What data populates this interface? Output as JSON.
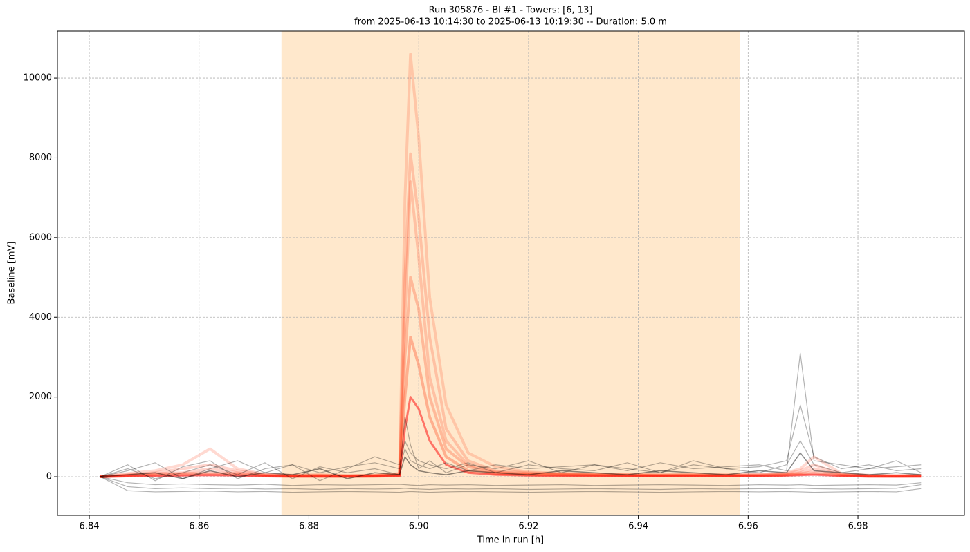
{
  "chart_data": {
    "type": "line",
    "title": "Run 305876  -  BI #1  -  Towers: [6, 13]",
    "subtitle": "from  2025-06-13 10:14:30  to  2025-06-13 10:19:30 -- Duration: 5.0 m",
    "x_label": "Time in run [h]",
    "y_label": "Baseline [mV]",
    "xlim": [
      6.8342,
      6.9994
    ],
    "ylim": [
      -970,
      11180
    ],
    "xticks": [
      6.84,
      6.86,
      6.88,
      {
        "value": 6.9,
        "label": "6.90"
      },
      6.92,
      6.94,
      6.96,
      6.98
    ],
    "yticks": [
      0,
      2000,
      4000,
      6000,
      8000,
      10000
    ],
    "grid": true,
    "shaded_span": [
      6.875,
      6.9585
    ],
    "shaded_color": "#ffe8cc",
    "x": [
      6.842,
      6.847,
      6.852,
      6.857,
      6.862,
      6.867,
      6.872,
      6.877,
      6.882,
      6.887,
      6.892,
      6.8965,
      6.8975,
      6.8985,
      6.9,
      6.902,
      6.905,
      6.909,
      6.914,
      6.92,
      6.926,
      6.932,
      6.938,
      6.944,
      6.95,
      6.956,
      6.962,
      6.967,
      6.9695,
      6.972,
      6.977,
      6.982,
      6.987,
      6.9915
    ],
    "series": [
      {
        "color": "#ff2a00",
        "opacity": 0.18,
        "width": 4,
        "values": [
          0,
          80,
          150,
          300,
          700,
          200,
          60,
          40,
          50,
          30,
          40,
          80,
          7000,
          10600,
          8500,
          4500,
          1800,
          600,
          250,
          120,
          90,
          70,
          60,
          50,
          60,
          50,
          60,
          100,
          200,
          500,
          80,
          40,
          30,
          40
        ]
      },
      {
        "color": "#ff2a00",
        "opacity": 0.2,
        "width": 4,
        "values": [
          0,
          50,
          100,
          200,
          300,
          150,
          50,
          30,
          40,
          20,
          30,
          60,
          5000,
          8100,
          6500,
          3500,
          1200,
          400,
          150,
          100,
          70,
          60,
          50,
          40,
          50,
          40,
          50,
          80,
          150,
          300,
          60,
          30,
          20,
          30
        ]
      },
      {
        "color": "#ff2a00",
        "opacity": 0.2,
        "width": 4,
        "values": [
          0,
          40,
          80,
          100,
          200,
          100,
          40,
          20,
          30,
          20,
          30,
          50,
          4000,
          7400,
          5500,
          2500,
          900,
          300,
          120,
          80,
          60,
          50,
          40,
          30,
          40,
          30,
          40,
          60,
          100,
          200,
          50,
          20,
          20,
          20
        ]
      },
      {
        "color": "#ff2a00",
        "opacity": 0.25,
        "width": 4,
        "values": [
          0,
          30,
          60,
          80,
          100,
          80,
          30,
          20,
          20,
          10,
          20,
          40,
          3000,
          5000,
          4200,
          2000,
          700,
          250,
          100,
          60,
          50,
          40,
          30,
          30,
          30,
          30,
          30,
          50,
          80,
          120,
          40,
          20,
          10,
          20
        ]
      },
      {
        "color": "#ff2a00",
        "opacity": 0.3,
        "width": 4,
        "values": [
          0,
          20,
          40,
          50,
          60,
          50,
          20,
          10,
          10,
          10,
          10,
          30,
          2000,
          3500,
          2800,
          1500,
          500,
          150,
          80,
          50,
          40,
          30,
          20,
          20,
          20,
          20,
          20,
          40,
          60,
          80,
          30,
          10,
          10,
          10
        ]
      },
      {
        "color": "#ff0000",
        "opacity": 0.5,
        "width": 3,
        "values": [
          0,
          10,
          20,
          30,
          40,
          30,
          10,
          5,
          5,
          5,
          10,
          20,
          1200,
          2000,
          1700,
          900,
          300,
          100,
          50,
          30,
          20,
          20,
          10,
          10,
          10,
          10,
          10,
          30,
          40,
          50,
          20,
          5,
          5,
          5
        ]
      },
      {
        "color": "#000000",
        "opacity": 0.3,
        "width": 1.2,
        "values": [
          0,
          300,
          -100,
          250,
          400,
          -50,
          200,
          300,
          100,
          250,
          350,
          200,
          700,
          400,
          300,
          200,
          350,
          150,
          300,
          200,
          250,
          300,
          150,
          350,
          200,
          250,
          300,
          150,
          3100,
          400,
          300,
          200,
          250,
          300
        ]
      },
      {
        "color": "#000000",
        "opacity": 0.3,
        "width": 1.2,
        "values": [
          0,
          -250,
          -300,
          -280,
          -300,
          -290,
          -310,
          -300,
          -320,
          -300,
          -310,
          -300,
          -290,
          -300,
          -310,
          -320,
          -300,
          -310,
          -300,
          -320,
          -310,
          -300,
          -310,
          -320,
          -300,
          -310,
          -300,
          -300,
          -290,
          -300,
          -310,
          -300,
          -290,
          -200
        ]
      },
      {
        "color": "#000000",
        "opacity": 0.3,
        "width": 1.2,
        "values": [
          0,
          150,
          350,
          -50,
          200,
          400,
          100,
          300,
          -100,
          200,
          500,
          300,
          900,
          600,
          400,
          300,
          200,
          350,
          100,
          300,
          200,
          150,
          350,
          100,
          300,
          200,
          250,
          400,
          1800,
          500,
          200,
          300,
          150,
          200
        ]
      },
      {
        "color": "#000000",
        "opacity": 0.3,
        "width": 1.2,
        "values": [
          0,
          -150,
          -200,
          -180,
          -200,
          -210,
          -190,
          -220,
          -200,
          -210,
          -200,
          -190,
          -200,
          -210,
          -220,
          -200,
          -210,
          -200,
          -220,
          -210,
          -200,
          -220,
          -210,
          -200,
          -210,
          -220,
          -200,
          -210,
          -200,
          -220,
          -210,
          -200,
          -210,
          -150
        ]
      },
      {
        "color": "#000000",
        "opacity": 0.3,
        "width": 1.2,
        "values": [
          0,
          200,
          -50,
          100,
          300,
          50,
          350,
          -50,
          250,
          100,
          200,
          50,
          1500,
          800,
          200,
          400,
          100,
          300,
          200,
          400,
          100,
          300,
          200,
          100,
          400,
          200,
          100,
          300,
          900,
          300,
          100,
          200,
          400,
          100
        ]
      },
      {
        "color": "#000000",
        "opacity": 0.3,
        "width": 1.2,
        "values": [
          0,
          -350,
          -380,
          -370,
          -360,
          -380,
          -370,
          -390,
          -380,
          -370,
          -380,
          -390,
          -380,
          -370,
          -380,
          -390,
          -380,
          -370,
          -380,
          -390,
          -380,
          -370,
          -380,
          -390,
          -380,
          -370,
          -380,
          -370,
          -380,
          -390,
          -380,
          -370,
          -380,
          -300
        ]
      },
      {
        "color": "#000000",
        "opacity": 0.45,
        "width": 1.5,
        "values": [
          0,
          50,
          100,
          -50,
          150,
          0,
          100,
          50,
          200,
          -50,
          100,
          50,
          500,
          300,
          150,
          100,
          50,
          150,
          100,
          50,
          150,
          100,
          50,
          150,
          100,
          50,
          150,
          100,
          600,
          150,
          100,
          50,
          100,
          50
        ]
      }
    ]
  }
}
